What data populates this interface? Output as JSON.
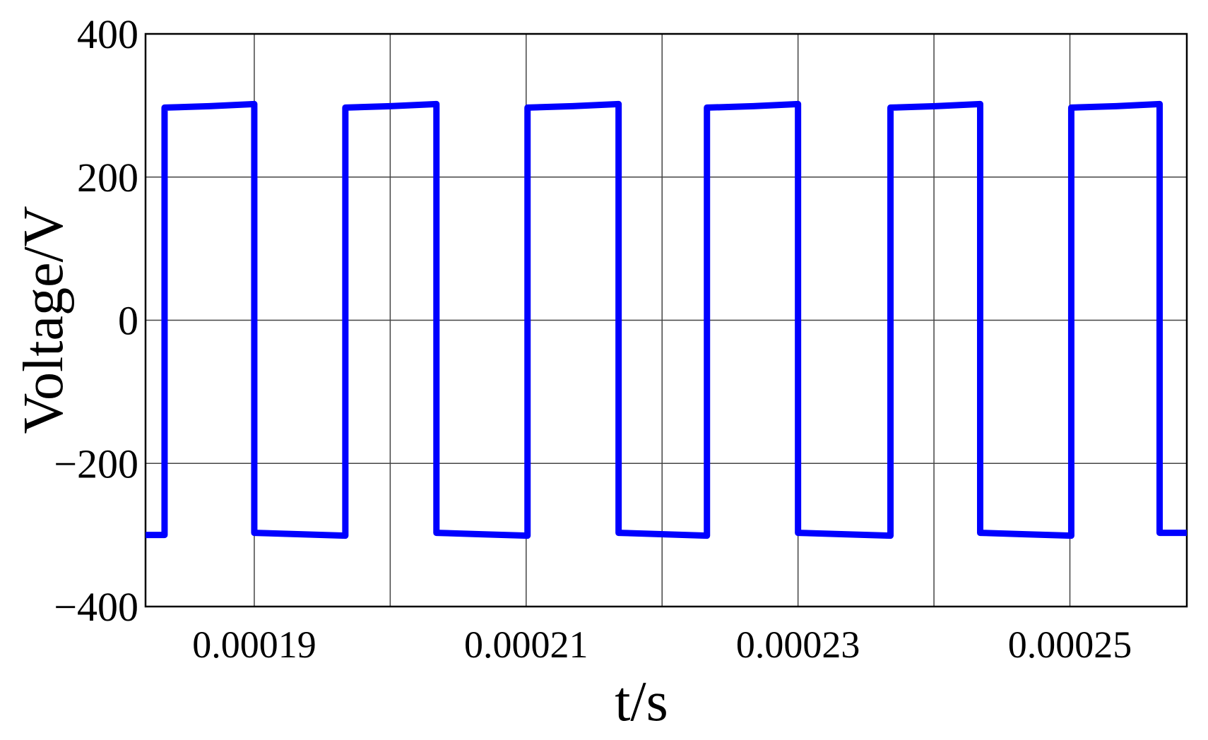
{
  "chart_data": {
    "type": "line",
    "x_label": "t/s",
    "y_label": "Voltage/V",
    "x": [
      0.000182,
      0.0001834,
      0.0001834,
      0.0001867,
      0.00019,
      0.00019,
      0.0001934,
      0.0001967,
      0.0001967,
      0.0002,
      0.0002034,
      0.0002034,
      0.0002067,
      0.0002101,
      0.0002101,
      0.0002134,
      0.0002168,
      0.0002168,
      0.0002201,
      0.0002233,
      0.0002233,
      0.0002267,
      0.00023,
      0.00023,
      0.0002334,
      0.0002368,
      0.0002368,
      0.0002401,
      0.0002434,
      0.0002434,
      0.0002467,
      0.0002501,
      0.0002501,
      0.0002534,
      0.0002566,
      0.0002566,
      0.0002586
    ],
    "series": [
      {
        "color": "#0000ff",
        "values": [
          -300,
          -300,
          297,
          299,
          302,
          -297,
          -299,
          -301,
          297,
          299,
          302,
          -297,
          -299,
          -301,
          297,
          299,
          302,
          -297,
          -299,
          -301,
          297,
          299,
          302,
          -297,
          -299,
          -301,
          297,
          299,
          302,
          -297,
          -299,
          -301,
          297,
          299,
          302,
          -297,
          -297
        ]
      }
    ],
    "xlim": [
      0.000182,
      0.0002586
    ],
    "xticks": [
      0.00019,
      0.00021,
      0.00023,
      0.00025
    ],
    "xminorticks": [
      0.0002,
      0.00022,
      0.00024
    ],
    "ylim": [
      -400,
      400
    ],
    "yticks": [
      {
        "value": -400,
        "label": "−400"
      },
      {
        "value": -200,
        "label": "−200"
      },
      0,
      200,
      400
    ],
    "grid": true
  }
}
